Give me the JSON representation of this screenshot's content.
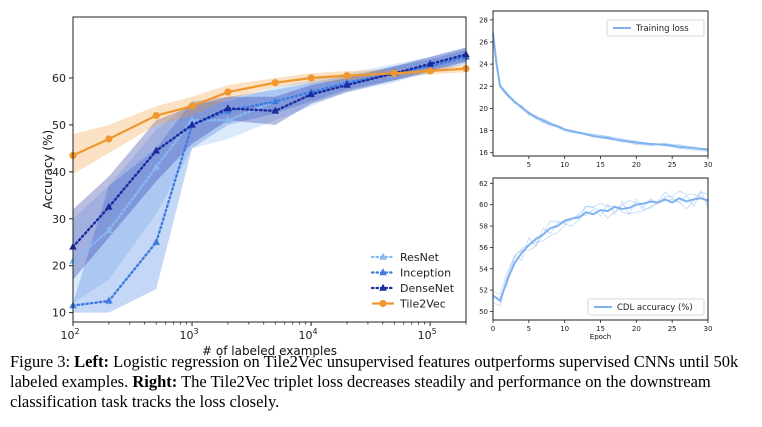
{
  "chart_data": [
    {
      "type": "line",
      "xlabel": "# of labeled examples",
      "ylabel": "Accuracy (%)",
      "xscale": "log",
      "xlim": [
        100,
        200000
      ],
      "ylim": [
        8,
        73
      ],
      "xticks": [
        {
          "v": 100,
          "b": "10",
          "e": "2"
        },
        {
          "v": 1000,
          "b": "10",
          "e": "3"
        },
        {
          "v": 10000,
          "b": "10",
          "e": "4"
        },
        {
          "v": 100000,
          "b": "10",
          "e": "5"
        }
      ],
      "yticks": [
        10,
        20,
        30,
        40,
        50,
        60
      ],
      "legend_position": "lower-right",
      "series": [
        {
          "name": "ResNet",
          "color": "#88b8f0",
          "marker": "triangle",
          "linestyle": "dotted",
          "x": [
            100,
            200,
            500,
            1000,
            2000,
            5000,
            10000,
            20000,
            50000,
            100000,
            200000
          ],
          "y": [
            21,
            27.5,
            41,
            51,
            51,
            55,
            57,
            59,
            61,
            63,
            65
          ],
          "lo": [
            12,
            17,
            31,
            45,
            47,
            51,
            54,
            57,
            59,
            61.5,
            63.5
          ],
          "hi": [
            30,
            37,
            49,
            55,
            55,
            58,
            59.5,
            61,
            63,
            64.5,
            66.5
          ]
        },
        {
          "name": "Inception",
          "color": "#3f7be0",
          "marker": "triangle",
          "linestyle": "dotted",
          "x": [
            100,
            200,
            500,
            1000,
            2000,
            5000,
            10000,
            20000,
            50000,
            100000,
            200000
          ],
          "y": [
            11.5,
            12.5,
            25,
            50,
            53,
            55,
            57,
            59,
            61,
            62.5,
            64.5
          ],
          "lo": [
            10,
            10,
            15,
            45,
            50,
            52.5,
            55,
            57.5,
            59.5,
            61,
            63
          ],
          "hi": [
            12,
            37,
            45,
            55,
            56,
            57.5,
            59,
            60.5,
            62.5,
            64,
            66
          ]
        },
        {
          "name": "DenseNet",
          "color": "#1c2aa0",
          "marker": "triangle",
          "linestyle": "dotted",
          "x": [
            100,
            200,
            500,
            1000,
            2000,
            5000,
            10000,
            20000,
            50000,
            100000,
            200000
          ],
          "y": [
            24,
            32.5,
            44.5,
            50,
            53.5,
            53,
            56.5,
            58.5,
            61,
            63,
            65
          ],
          "lo": [
            17,
            26,
            38,
            46,
            51,
            50,
            54.5,
            57,
            59.5,
            61.5,
            63.5
          ],
          "hi": [
            32,
            39,
            51,
            54,
            56,
            56,
            58.5,
            60,
            62.5,
            64.5,
            66.5
          ]
        },
        {
          "name": "Tile2Vec",
          "color": "#f0972f",
          "marker": "circle",
          "linestyle": "solid",
          "x": [
            100,
            200,
            500,
            1000,
            2000,
            5000,
            10000,
            20000,
            50000,
            100000,
            200000
          ],
          "y": [
            43.5,
            47,
            52,
            54,
            57,
            59,
            60,
            60.5,
            61,
            61.5,
            62
          ],
          "lo": [
            39.5,
            44,
            50,
            52,
            55.5,
            58,
            59,
            59.5,
            60.2,
            60.8,
            61.2
          ],
          "hi": [
            48,
            50,
            54,
            56,
            58.5,
            60,
            61,
            61.5,
            61.8,
            62.2,
            62.8
          ]
        }
      ]
    },
    {
      "type": "line",
      "xlabel": "",
      "ylabel": "",
      "xlim": [
        0,
        30
      ],
      "ylim": [
        15.7,
        28.8
      ],
      "xticks": [
        5,
        10,
        15,
        20,
        25,
        30
      ],
      "yticks": [
        16,
        18,
        20,
        22,
        24,
        26,
        28
      ],
      "legend_position": "upper-right",
      "series": [
        {
          "name": "Training loss",
          "color": "#7fb2ef",
          "x": [
            0,
            0.5,
            1,
            2,
            3,
            4,
            5,
            6,
            7,
            8,
            9,
            10,
            12,
            14,
            16,
            18,
            20,
            22,
            24,
            26,
            28,
            30
          ],
          "y": [
            26.8,
            24,
            22,
            21.2,
            20.6,
            20.1,
            19.6,
            19.2,
            18.9,
            18.6,
            18.4,
            18.1,
            17.8,
            17.5,
            17.3,
            17.1,
            16.9,
            16.8,
            16.7,
            16.55,
            16.4,
            16.3
          ]
        }
      ]
    },
    {
      "type": "line",
      "xlabel": "Epoch",
      "ylabel": "",
      "xlim": [
        0,
        30
      ],
      "ylim": [
        49.2,
        62.5
      ],
      "xticks": [
        0,
        5,
        10,
        15,
        20,
        25,
        30
      ],
      "yticks": [
        50,
        52,
        54,
        56,
        58,
        60,
        62
      ],
      "legend_position": "lower-right",
      "series": [
        {
          "name": "CDL accuracy (%)",
          "color": "#7fb2ef",
          "x": [
            0,
            1,
            2,
            3,
            4,
            5,
            6,
            7,
            8,
            9,
            10,
            11,
            12,
            13,
            14,
            15,
            16,
            17,
            18,
            19,
            20,
            21,
            22,
            23,
            24,
            25,
            26,
            27,
            28,
            29,
            30
          ],
          "y": [
            51.5,
            51,
            53,
            54.5,
            55.5,
            56.2,
            56.8,
            57.2,
            57.8,
            58,
            58.5,
            58.7,
            58.8,
            59.3,
            59.1,
            59.5,
            59.4,
            59.8,
            59.6,
            59.7,
            60,
            60.1,
            60.3,
            60.2,
            60.5,
            60.2,
            60.6,
            60.3,
            60.5,
            60.6,
            60.4
          ]
        }
      ]
    }
  ],
  "caption": {
    "label": "Figure 3:",
    "left_head": "Left:",
    "left_text": "Logistic regression on Tile2Vec unsupervised features outperforms supervised CNNs until 50k labeled examples.",
    "right_head": "Right:",
    "right_text": "The Tile2Vec triplet loss decreases steadily and performance on the downstream classification task tracks the loss closely."
  }
}
